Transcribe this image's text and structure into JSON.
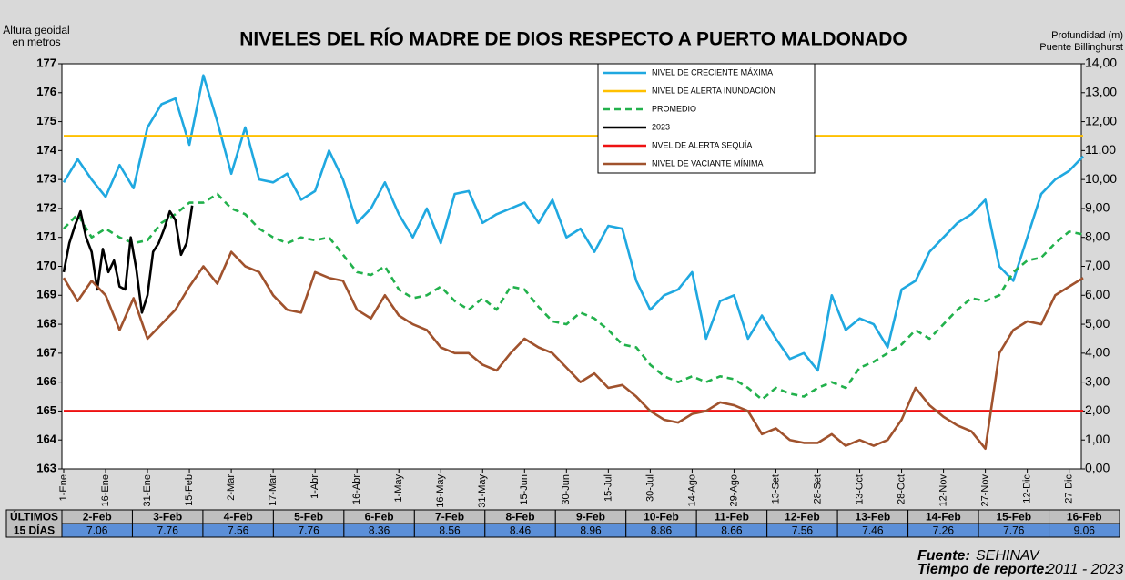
{
  "chart_data": {
    "type": "line",
    "title": "NIVELES DEL RÍO MADRE DE DIOS RESPECTO A PUERTO MALDONADO",
    "y_label": [
      "Altura geoidal",
      "en metros"
    ],
    "y2_label": [
      "Profundidad (m)",
      "Puente Billinghurst"
    ],
    "xlim": [
      0,
      365
    ],
    "xticks": [
      {
        "value": 0,
        "label": "1-Ene"
      },
      {
        "value": 15,
        "label": "16-Ene"
      },
      {
        "value": 30,
        "label": "31-Ene"
      },
      {
        "value": 45,
        "label": "15-Feb"
      },
      {
        "value": 60,
        "label": "2-Mar"
      },
      {
        "value": 75,
        "label": "17-Mar"
      },
      {
        "value": 90,
        "label": "1-Abr"
      },
      {
        "value": 105,
        "label": "16-Abr"
      },
      {
        "value": 120,
        "label": "1-May"
      },
      {
        "value": 135,
        "label": "16-May"
      },
      {
        "value": 150,
        "label": "31-May"
      },
      {
        "value": 165,
        "label": "15-Jun"
      },
      {
        "value": 180,
        "label": "30-Jun"
      },
      {
        "value": 195,
        "label": "15-Jul"
      },
      {
        "value": 210,
        "label": "30-Jul"
      },
      {
        "value": 225,
        "label": "14-Ago"
      },
      {
        "value": 240,
        "label": "29-Ago"
      },
      {
        "value": 255,
        "label": "13-Set"
      },
      {
        "value": 270,
        "label": "28-Set"
      },
      {
        "value": 285,
        "label": "13-Oct"
      },
      {
        "value": 300,
        "label": "28-Oct"
      },
      {
        "value": 315,
        "label": "12-Nov"
      },
      {
        "value": 330,
        "label": "27-Nov"
      },
      {
        "value": 345,
        "label": "12-Dic"
      },
      {
        "value": 360,
        "label": "27-Dic"
      }
    ],
    "ylim": [
      163,
      177
    ],
    "yticks": [
      163,
      164,
      165,
      166,
      167,
      168,
      169,
      170,
      171,
      172,
      173,
      174,
      175,
      176,
      177
    ],
    "y2lim": [
      0,
      14
    ],
    "y2ticks": [
      {
        "value": 0,
        "label": "0,00"
      },
      {
        "value": 1,
        "label": "1,00"
      },
      {
        "value": 2,
        "label": "2,00"
      },
      {
        "value": 3,
        "label": "3,00"
      },
      {
        "value": 4,
        "label": "4,00"
      },
      {
        "value": 5,
        "label": "5,00"
      },
      {
        "value": 6,
        "label": "6,00"
      },
      {
        "value": 7,
        "label": "7,00"
      },
      {
        "value": 8,
        "label": "8,00"
      },
      {
        "value": 9,
        "label": "9,00"
      },
      {
        "value": 10,
        "label": "10,00"
      },
      {
        "value": 11,
        "label": "11,00"
      },
      {
        "value": 12,
        "label": "12,00"
      },
      {
        "value": 13,
        "label": "13,00"
      },
      {
        "value": 14,
        "label": "14,00"
      }
    ],
    "series": [
      {
        "name": "NIVEL DE CRECIENTE MÁXIMA",
        "color": "#1fa8e0",
        "style": "solid",
        "x": [
          0,
          5,
          10,
          15,
          20,
          25,
          30,
          35,
          40,
          45,
          50,
          55,
          60,
          65,
          70,
          75,
          80,
          85,
          90,
          95,
          100,
          105,
          110,
          115,
          120,
          125,
          130,
          135,
          140,
          145,
          150,
          155,
          160,
          165,
          170,
          175,
          180,
          185,
          190,
          195,
          200,
          205,
          210,
          215,
          220,
          225,
          230,
          235,
          240,
          245,
          250,
          255,
          260,
          265,
          270,
          275,
          280,
          285,
          290,
          295,
          300,
          305,
          310,
          315,
          320,
          325,
          330,
          335,
          340,
          345,
          350,
          355,
          360,
          365
        ],
        "values": [
          172.9,
          173.7,
          173.0,
          172.4,
          173.5,
          172.7,
          174.8,
          175.6,
          175.8,
          174.2,
          176.6,
          175.0,
          173.2,
          174.8,
          173.0,
          172.9,
          173.2,
          172.3,
          172.6,
          174.0,
          173.0,
          171.5,
          172.0,
          172.9,
          171.8,
          171.0,
          172.0,
          170.8,
          172.5,
          172.6,
          171.5,
          171.8,
          172.0,
          172.2,
          171.5,
          172.3,
          171.0,
          171.3,
          170.5,
          171.4,
          171.3,
          169.5,
          168.5,
          169.0,
          169.2,
          169.8,
          167.5,
          168.8,
          169.0,
          167.5,
          168.3,
          167.5,
          166.8,
          167.0,
          166.4,
          169.0,
          167.8,
          168.2,
          168.0,
          167.2,
          169.2,
          169.5,
          170.5,
          171.0,
          171.5,
          171.8,
          172.3,
          170.0,
          169.5,
          171.0,
          172.5,
          173.0,
          173.3,
          173.8
        ]
      },
      {
        "name": "NIVEL DE ALERTA INUNDACIÓN",
        "color": "#ffc000",
        "style": "solid",
        "x": [
          0,
          365
        ],
        "values": [
          174.5,
          174.5
        ]
      },
      {
        "name": "PROMEDIO",
        "color": "#22b14c",
        "style": "dashed",
        "x": [
          0,
          5,
          10,
          15,
          20,
          25,
          30,
          35,
          40,
          45,
          50,
          55,
          60,
          65,
          70,
          75,
          80,
          85,
          90,
          95,
          100,
          105,
          110,
          115,
          120,
          125,
          130,
          135,
          140,
          145,
          150,
          155,
          160,
          165,
          170,
          175,
          180,
          185,
          190,
          195,
          200,
          205,
          210,
          215,
          220,
          225,
          230,
          235,
          240,
          245,
          250,
          255,
          260,
          265,
          270,
          275,
          280,
          285,
          290,
          295,
          300,
          305,
          310,
          315,
          320,
          325,
          330,
          335,
          340,
          345,
          350,
          355,
          360,
          365
        ],
        "values": [
          171.3,
          171.8,
          171.0,
          171.3,
          171.0,
          170.8,
          170.9,
          171.5,
          171.8,
          172.2,
          172.2,
          172.5,
          172.0,
          171.8,
          171.3,
          171.0,
          170.8,
          171.0,
          170.9,
          171.0,
          170.4,
          169.8,
          169.7,
          170.0,
          169.2,
          168.9,
          169.0,
          169.3,
          168.8,
          168.5,
          168.9,
          168.5,
          169.3,
          169.2,
          168.6,
          168.1,
          168.0,
          168.4,
          168.2,
          167.8,
          167.3,
          167.2,
          166.6,
          166.2,
          166.0,
          166.2,
          166.0,
          166.2,
          166.1,
          165.8,
          165.4,
          165.8,
          165.6,
          165.5,
          165.8,
          166.0,
          165.8,
          166.5,
          166.7,
          167.0,
          167.3,
          167.8,
          167.5,
          168.0,
          168.5,
          168.9,
          168.8,
          169.0,
          169.8,
          170.2,
          170.3,
          170.8,
          171.2,
          171.1
        ]
      },
      {
        "name": "2023",
        "color": "#000000",
        "style": "solid",
        "x": [
          0,
          2,
          4,
          6,
          8,
          10,
          12,
          14,
          16,
          18,
          20,
          22,
          24,
          26,
          28,
          30,
          32,
          34,
          36,
          38,
          40,
          42,
          44,
          46
        ],
        "values": [
          169.8,
          170.8,
          171.4,
          171.9,
          171.0,
          170.5,
          169.2,
          170.6,
          169.8,
          170.2,
          169.3,
          169.2,
          171.0,
          169.9,
          168.4,
          169.0,
          170.5,
          170.8,
          171.3,
          171.9,
          171.6,
          170.4,
          170.8,
          172.1
        ]
      },
      {
        "name": "NVEL DE ALERTA SEQUÍA",
        "color": "#ee1111",
        "style": "solid",
        "x": [
          0,
          365
        ],
        "values": [
          165,
          165
        ]
      },
      {
        "name": "NIVEL DE VACIANTE MÍNIMA",
        "color": "#a0522d",
        "style": "solid",
        "x": [
          0,
          5,
          10,
          15,
          20,
          25,
          30,
          35,
          40,
          45,
          50,
          55,
          60,
          65,
          70,
          75,
          80,
          85,
          90,
          95,
          100,
          105,
          110,
          115,
          120,
          125,
          130,
          135,
          140,
          145,
          150,
          155,
          160,
          165,
          170,
          175,
          180,
          185,
          190,
          195,
          200,
          205,
          210,
          215,
          220,
          225,
          230,
          235,
          240,
          245,
          250,
          255,
          260,
          265,
          270,
          275,
          280,
          285,
          290,
          295,
          300,
          305,
          310,
          315,
          320,
          325,
          330,
          335,
          340,
          345,
          350,
          355,
          360,
          365
        ],
        "values": [
          169.6,
          168.8,
          169.5,
          169.0,
          167.8,
          168.9,
          167.5,
          168.0,
          168.5,
          169.3,
          170.0,
          169.4,
          170.5,
          170.0,
          169.8,
          169.0,
          168.5,
          168.4,
          169.8,
          169.6,
          169.5,
          168.5,
          168.2,
          169.0,
          168.3,
          168.0,
          167.8,
          167.2,
          167.0,
          167.0,
          166.6,
          166.4,
          167.0,
          167.5,
          167.2,
          167.0,
          166.5,
          166.0,
          166.3,
          165.8,
          165.9,
          165.5,
          165.0,
          164.7,
          164.6,
          164.9,
          165.0,
          165.3,
          165.2,
          165.0,
          164.2,
          164.4,
          164.0,
          163.9,
          163.9,
          164.2,
          163.8,
          164.0,
          163.8,
          164.0,
          164.7,
          165.8,
          165.2,
          164.8,
          164.5,
          164.3,
          163.7,
          167.0,
          167.8,
          168.1,
          168.0,
          169.0,
          169.3,
          169.6
        ]
      }
    ]
  },
  "table": {
    "header": [
      "ÚLTIMOS",
      "15 DÍAS"
    ],
    "dates": [
      "2-Feb",
      "3-Feb",
      "4-Feb",
      "5-Feb",
      "6-Feb",
      "7-Feb",
      "8-Feb",
      "9-Feb",
      "10-Feb",
      "11-Feb",
      "12-Feb",
      "13-Feb",
      "14-Feb",
      "15-Feb",
      "16-Feb"
    ],
    "values": [
      7.06,
      7.76,
      7.56,
      7.76,
      8.36,
      8.56,
      8.46,
      8.96,
      8.86,
      8.66,
      7.56,
      7.46,
      7.26,
      7.76,
      9.06
    ]
  },
  "footer": {
    "source_label": "Fuente:",
    "source": "SEHINAV",
    "period_label": "Tiempo de reporte:",
    "period": "2011 - 2023"
  }
}
